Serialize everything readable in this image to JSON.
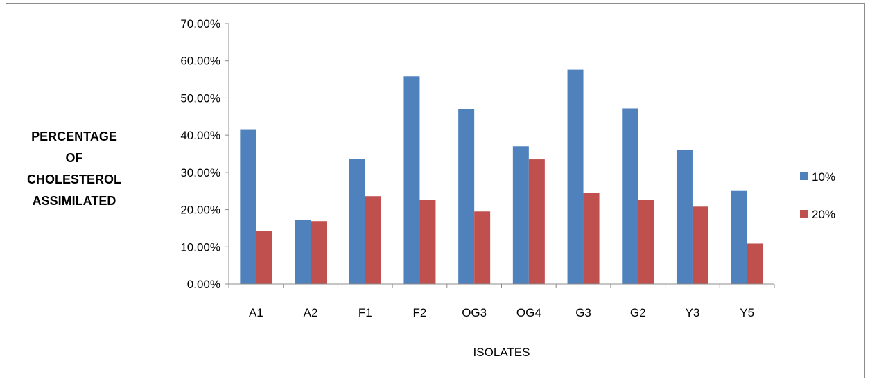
{
  "chart_data": {
    "type": "bar",
    "title": "",
    "xlabel": "ISOLATES",
    "ylabel_lines": [
      "PERCENTAGE",
      "OF",
      "CHOLESTEROL",
      "ASSIMILATED"
    ],
    "categories": [
      "A1",
      "A2",
      "F1",
      "F2",
      "OG3",
      "OG4",
      "G3",
      "G2",
      "Y3",
      "Y5"
    ],
    "series": [
      {
        "name": "10%",
        "color": "#4f81bd",
        "values": [
          41.6,
          17.3,
          33.6,
          55.8,
          47.0,
          37.0,
          57.6,
          47.2,
          36.0,
          25.0
        ]
      },
      {
        "name": "20%",
        "color": "#c0504d",
        "values": [
          14.3,
          16.9,
          23.6,
          22.6,
          19.5,
          33.5,
          24.4,
          22.7,
          20.8,
          10.9
        ]
      }
    ],
    "ylim": [
      0,
      70
    ],
    "yticks": [
      0,
      10,
      20,
      30,
      40,
      50,
      60,
      70
    ],
    "ytick_labels": [
      "0.00%",
      "10.00%",
      "20.00%",
      "30.00%",
      "40.00%",
      "50.00%",
      "60.00%",
      "70.00%"
    ],
    "grid": false,
    "legend": "right"
  }
}
